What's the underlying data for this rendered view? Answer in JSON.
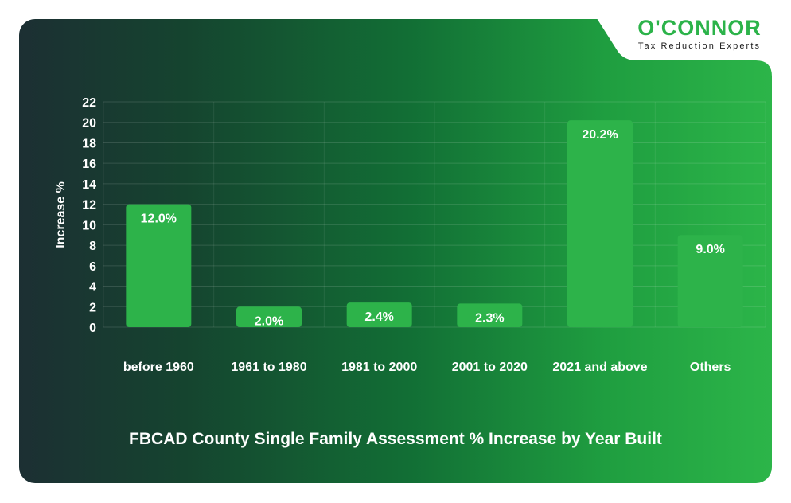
{
  "brand": {
    "name": "O'CONNOR",
    "tagline": "Tax Reduction Experts",
    "accent": "#2cb34a"
  },
  "colors": {
    "bar": "#2db34a",
    "text": "#ffffff",
    "grid": "#ffffff"
  },
  "chart_data": {
    "type": "bar",
    "title": "FBCAD County Single Family Assessment % Increase by Year Built",
    "xlabel": "",
    "ylabel": "Increase %",
    "categories": [
      "before 1960",
      "1961 to 1980",
      "1981 to 2000",
      "2001 to 2020",
      "2021 and above",
      "Others"
    ],
    "values": [
      12.0,
      2.0,
      2.4,
      2.3,
      20.2,
      9.0
    ],
    "data_labels": [
      "12.0%",
      "2.0%",
      "2.4%",
      "2.3%",
      "20.2%",
      "9.0%"
    ],
    "ylim": [
      0,
      22
    ],
    "yticks": [
      0,
      2,
      4,
      6,
      8,
      10,
      12,
      14,
      16,
      18,
      20,
      22
    ],
    "grid": true,
    "legend": "none"
  }
}
